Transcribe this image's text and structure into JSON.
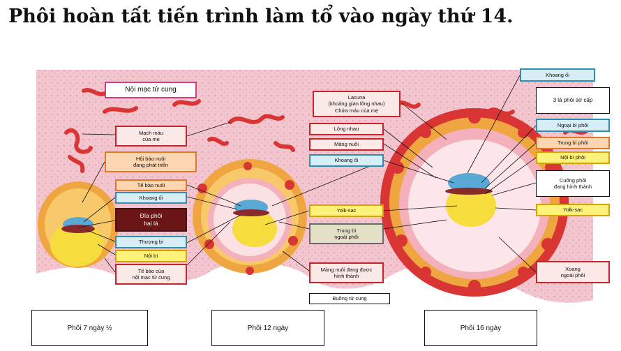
{
  "title": "Phôi hoàn tất tiến trình làm tổ vào ngày thứ 14.",
  "labels": {
    "noi_mac": "Nội mạc tử cung",
    "mach_mau": "Mạch máu\ncủa mẹ",
    "hoi_bao": "Hội bào nuôi\nđang phát triển",
    "te_bao_nuoi": "Tế bào nuôi",
    "khoang_oi_1": "Khoang ối",
    "dia_phoi": "Đĩa phôi\nhai lá",
    "thuong_bi": "Thượng bì",
    "noi_bi_1": "Nội bì",
    "te_bao_noi_mac": "Tế bào của\nnội mạc tử cung",
    "lacuna": "Lacuna\n(khoảng gian lông nhau)\nChứa máu của mẹ",
    "long_nhau": "Lông nhau",
    "mang_nuoi": "Màng nuôi",
    "khoang_oi_2": "Khoang ối",
    "yolk_sac_1": "Yolk-sac",
    "trung_bi_ngoai": "Trung bì\nngoài phôi",
    "mang_nuoi_dang": "Màng nuôi đang được\nhình thành",
    "buong_tu_cung": "Buồng tử cung",
    "khoang_oi_3": "Khoang ối",
    "ba_la": "3 lá phôi sơ cấp",
    "ngoai_bi": "Ngoại bì phôi",
    "trung_bi": "Trung bì phôi",
    "noi_bi_2": "Nội bì phôi",
    "cuong_phoi": "Cuống phôi\nđang hình thành",
    "yolk_sac_2": "Yolk-sac",
    "xoang": "Xoang\nngoài phôi"
  },
  "captions": {
    "c1": "Phôi 7 ngày ½",
    "c2": "Phôi 12 ngày",
    "c3": "Phôi 16 ngày"
  },
  "colors": {
    "tissue": "#f3c6cf",
    "vessel": "#d93535",
    "trophoblast": "#f0a640",
    "yolk": "#f6dc3c",
    "amnion": "#5aa8d4",
    "label_red": "#c8242b"
  }
}
